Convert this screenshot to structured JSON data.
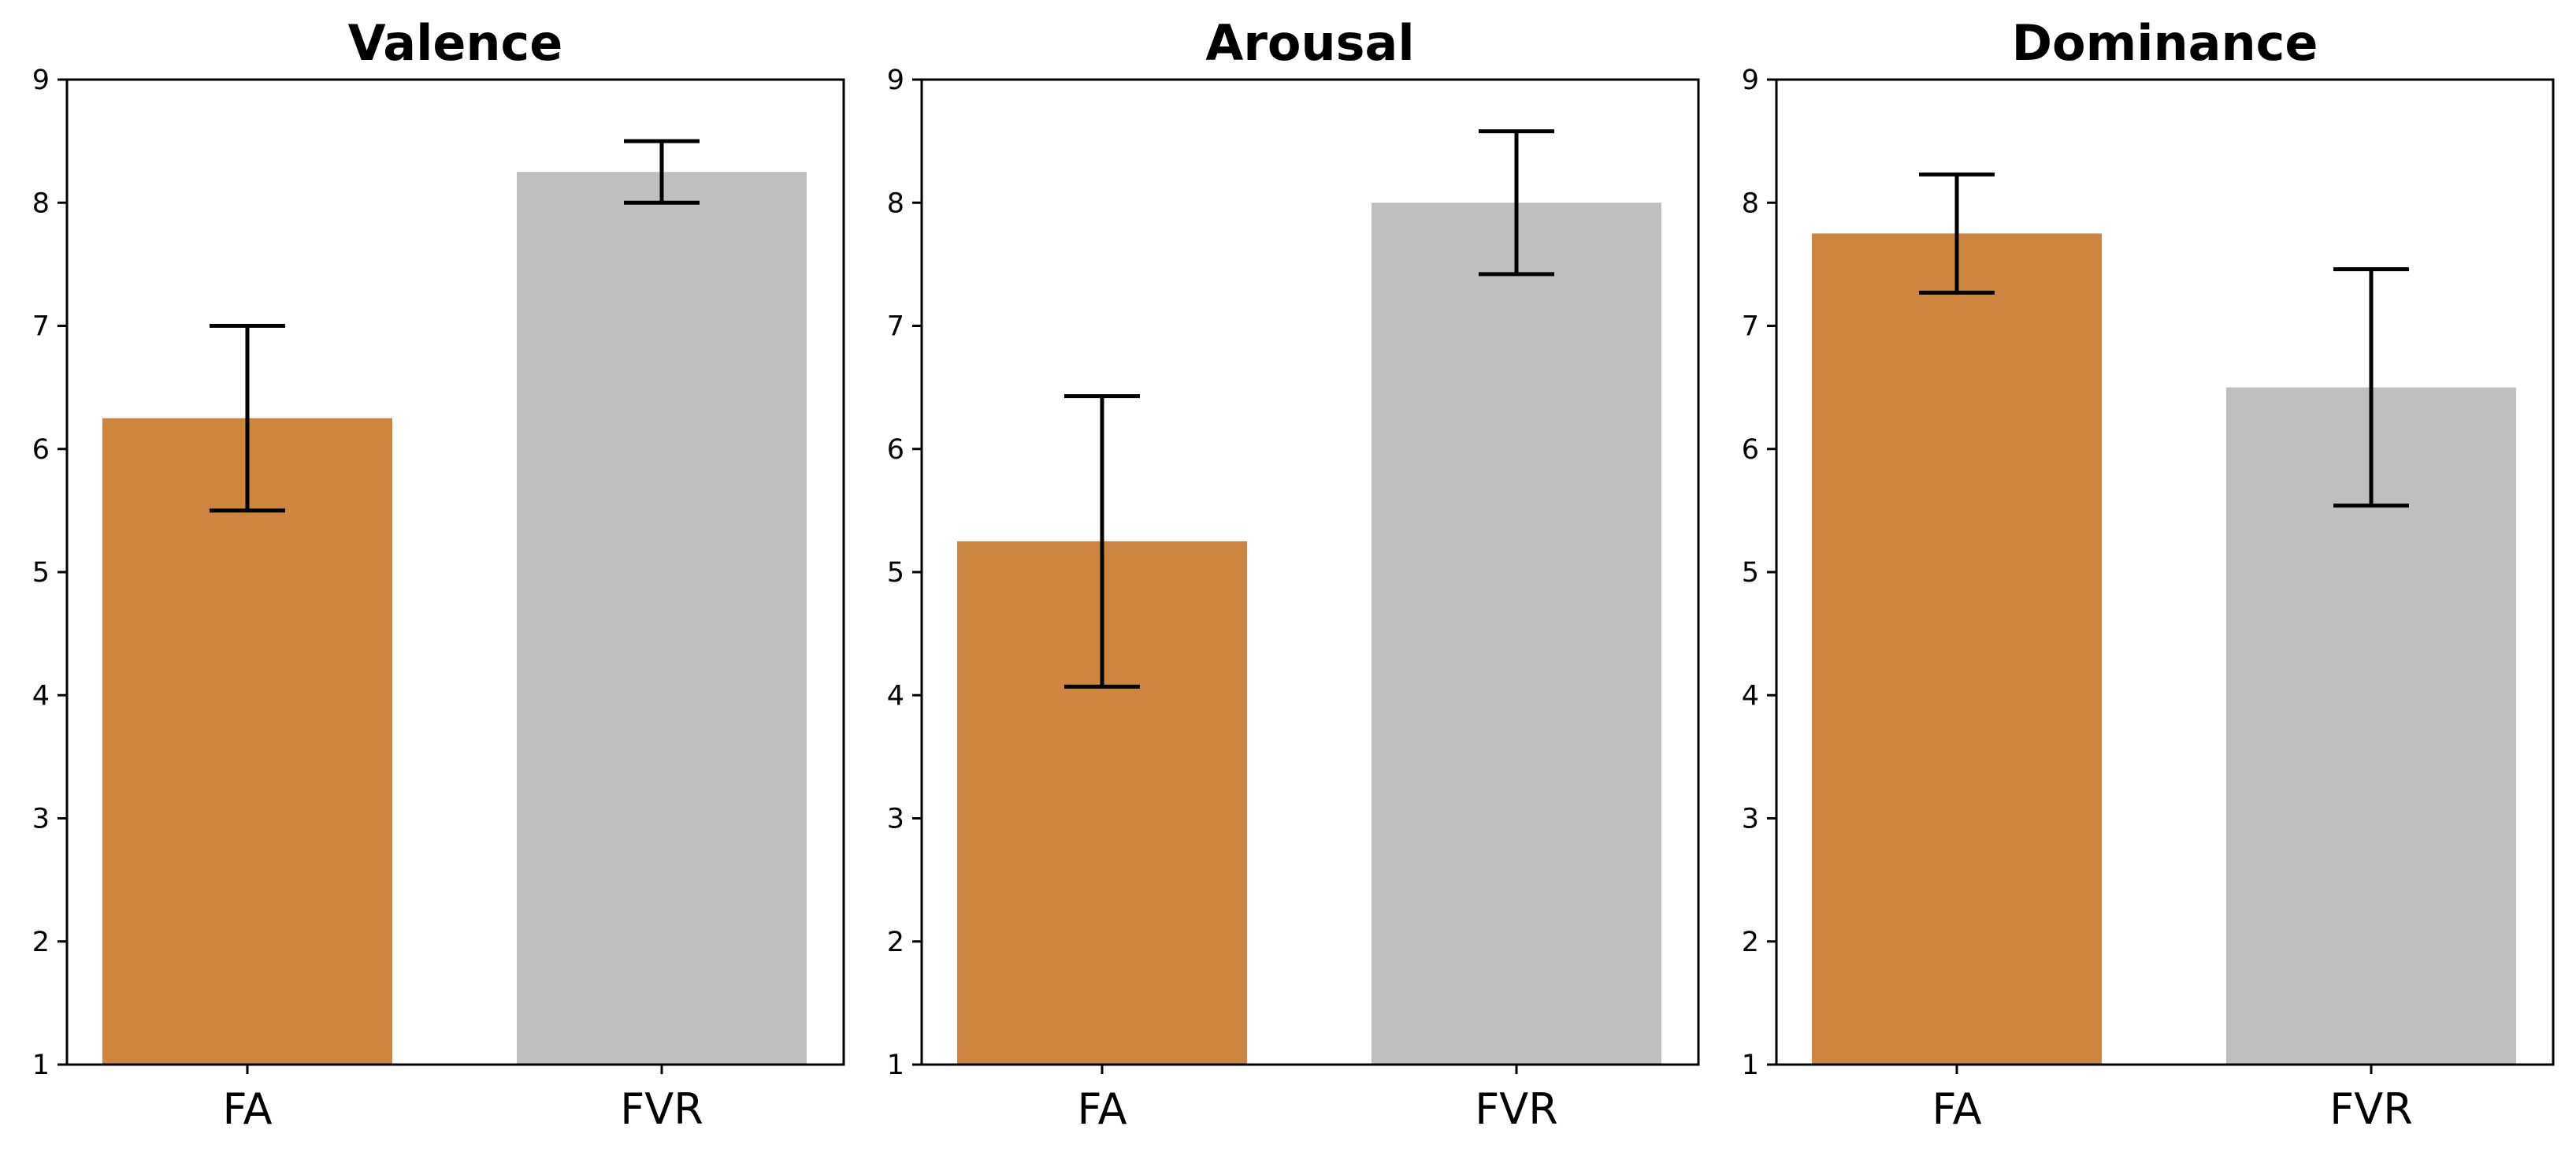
{
  "colors": {
    "FA": "#cd853f",
    "FVR": "#bfbfbf",
    "axes": "#000000",
    "errorbar": "#000000"
  },
  "chart_data": [
    {
      "type": "bar",
      "title": "Valence",
      "categories": [
        "FA",
        "FVR"
      ],
      "values": [
        6.25,
        8.25
      ],
      "errors": [
        0.75,
        0.25
      ],
      "ylim": [
        1,
        9
      ],
      "yticks": [
        1,
        2,
        3,
        4,
        5,
        6,
        7,
        8,
        9
      ],
      "grid": false
    },
    {
      "type": "bar",
      "title": "Arousal",
      "categories": [
        "FA",
        "FVR"
      ],
      "values": [
        5.25,
        8.0
      ],
      "errors": [
        1.18,
        0.58
      ],
      "ylim": [
        1,
        9
      ],
      "yticks": [
        1,
        2,
        3,
        4,
        5,
        6,
        7,
        8,
        9
      ],
      "grid": false
    },
    {
      "type": "bar",
      "title": "Dominance",
      "categories": [
        "FA",
        "FVR"
      ],
      "values": [
        7.75,
        6.5
      ],
      "errors": [
        0.48,
        0.96
      ],
      "ylim": [
        1,
        9
      ],
      "yticks": [
        1,
        2,
        3,
        4,
        5,
        6,
        7,
        8,
        9
      ],
      "grid": false
    }
  ]
}
